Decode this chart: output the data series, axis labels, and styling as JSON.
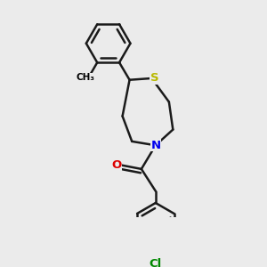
{
  "background_color": "#ebebeb",
  "atom_colors": {
    "S": "#b8b800",
    "N": "#0000ee",
    "O": "#dd0000",
    "Cl": "#008800",
    "C": "#000000"
  },
  "bond_color": "#1a1a1a",
  "bond_lw": 1.8,
  "figsize": [
    3.0,
    3.0
  ],
  "dpi": 100,
  "xlim": [
    0.6,
    2.8
  ],
  "ylim": [
    0.3,
    3.05
  ]
}
